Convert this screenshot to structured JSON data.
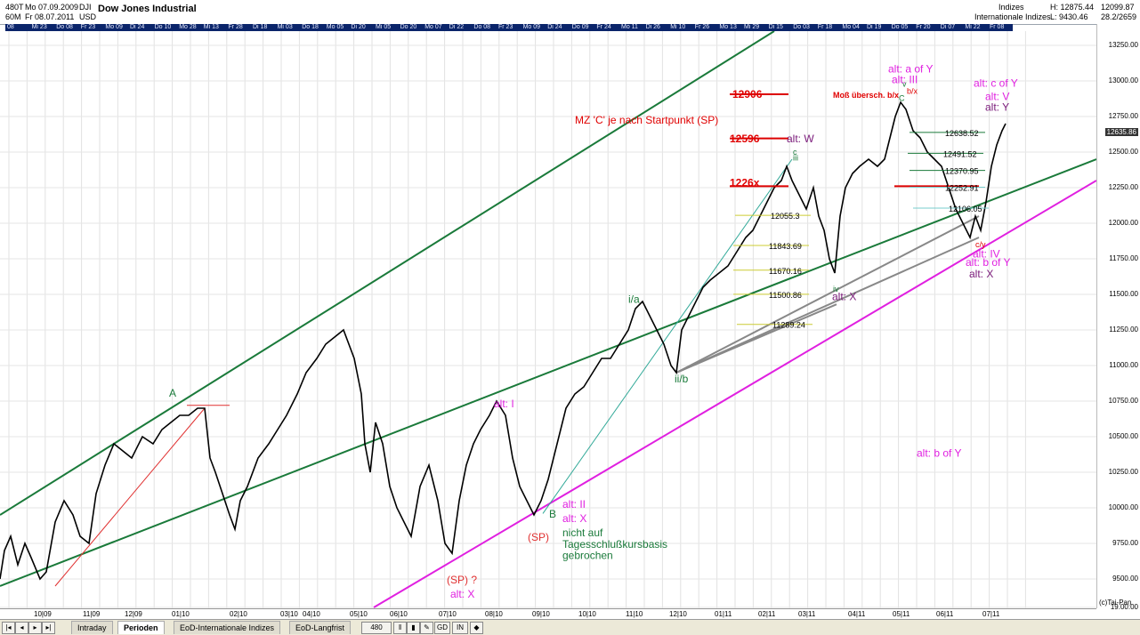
{
  "header": {
    "bars": "480T",
    "start_date": "Mo 07.09.2009",
    "end_date": "Fr 08.07.2011",
    "interval": "60M",
    "symbol": "DJI",
    "currency": "USD",
    "title": "Dow Jones Industrial",
    "group": "Indizes",
    "group2": "Internationale Indizes",
    "high": "H: 12875.44",
    "low": "L: 9430.46",
    "right_top": "12099.87",
    "right_top2": "28.2/2659"
  },
  "chart_data": {
    "type": "line",
    "title": "Dow Jones Industrial",
    "ylim": [
      9300,
      13350
    ],
    "y_ticks": [
      "13250.00",
      "13000.00",
      "12750.00",
      "12500.00",
      "12250.00",
      "12000.00",
      "11750.00",
      "11500.00",
      "11250.00",
      "11000.00",
      "10750.00",
      "10500.00",
      "10250.00",
      "10000.00",
      "9750.00",
      "9500.00",
      "19.00:00"
    ],
    "y_tick_values": [
      13250,
      13000,
      12750,
      12500,
      12250,
      12000,
      11750,
      11500,
      11250,
      11000,
      10750,
      10500,
      10250,
      10000,
      9750,
      9500,
      9300
    ],
    "last_value": "12635.86",
    "x_labels": [
      "10|09",
      "11|09",
      "12|09",
      "01|10",
      "02|10",
      "03|10",
      "04|10",
      "05|10",
      "06|10",
      "07|10",
      "08|10",
      "09|10",
      "10|10",
      "11|10",
      "12|10",
      "01|11",
      "02|11",
      "03|11",
      "04|11",
      "05|11",
      "06|11",
      "07|11"
    ],
    "date_bar": [
      "08",
      "Mi 23",
      "Do 08",
      "Fr 23",
      "Mo 09",
      "Di 24",
      "Do 10",
      "Mo 28",
      "Mi 13",
      "Fr 28",
      "Di 18",
      "Mi 03",
      "Do 18",
      "Mo 05",
      "Di 20",
      "Mi 05",
      "Do 20",
      "Mo 07",
      "Di 22",
      "Do 08",
      "Fr 23",
      "Mo 09",
      "Di 24",
      "Do 09",
      "Fr 24",
      "Mo 11",
      "Di 26",
      "Mi 10",
      "Fr 26",
      "Mo 13",
      "Mi 29",
      "Di 15",
      "Do 03",
      "Fr 18",
      "Mo 04",
      "Di 19",
      "Do 05",
      "Fr 20",
      "Di 07",
      "Mi 22",
      "Fr 08"
    ],
    "series": [
      {
        "values": [
          [
            0,
            9500
          ],
          [
            5,
            9700
          ],
          [
            12,
            9800
          ],
          [
            20,
            9600
          ],
          [
            28,
            9750
          ],
          [
            35,
            9650
          ],
          [
            45,
            9500
          ],
          [
            52,
            9550
          ],
          [
            62,
            9900
          ],
          [
            72,
            10050
          ],
          [
            82,
            9950
          ],
          [
            90,
            9800
          ],
          [
            100,
            9750
          ],
          [
            108,
            10100
          ],
          [
            118,
            10300
          ],
          [
            128,
            10450
          ],
          [
            138,
            10400
          ],
          [
            148,
            10350
          ],
          [
            160,
            10500
          ],
          [
            172,
            10450
          ],
          [
            182,
            10550
          ],
          [
            192,
            10600
          ],
          [
            202,
            10650
          ],
          [
            212,
            10650
          ],
          [
            222,
            10700
          ],
          [
            230,
            10700
          ],
          [
            236,
            10350
          ],
          [
            242,
            10250
          ],
          [
            250,
            10100
          ],
          [
            258,
            9950
          ],
          [
            264,
            9850
          ],
          [
            270,
            10050
          ],
          [
            278,
            10150
          ],
          [
            290,
            10350
          ],
          [
            302,
            10450
          ],
          [
            312,
            10550
          ],
          [
            322,
            10650
          ],
          [
            334,
            10800
          ],
          [
            344,
            10950
          ],
          [
            356,
            11050
          ],
          [
            366,
            11150
          ],
          [
            376,
            11200
          ],
          [
            386,
            11250
          ],
          [
            398,
            11050
          ],
          [
            406,
            10800
          ],
          [
            410,
            10450
          ],
          [
            416,
            10250
          ],
          [
            422,
            10600
          ],
          [
            430,
            10450
          ],
          [
            438,
            10150
          ],
          [
            446,
            10000
          ],
          [
            454,
            9900
          ],
          [
            462,
            9800
          ],
          [
            472,
            10150
          ],
          [
            482,
            10300
          ],
          [
            492,
            10050
          ],
          [
            500,
            9750
          ],
          [
            508,
            9680
          ],
          [
            516,
            10050
          ],
          [
            524,
            10300
          ],
          [
            532,
            10450
          ],
          [
            540,
            10550
          ],
          [
            550,
            10650
          ],
          [
            558,
            10750
          ],
          [
            568,
            10650
          ],
          [
            576,
            10350
          ],
          [
            584,
            10150
          ],
          [
            592,
            10050
          ],
          [
            600,
            9950
          ],
          [
            608,
            10050
          ],
          [
            616,
            10200
          ],
          [
            626,
            10450
          ],
          [
            636,
            10700
          ],
          [
            646,
            10800
          ],
          [
            656,
            10850
          ],
          [
            666,
            10950
          ],
          [
            676,
            11050
          ],
          [
            686,
            11050
          ],
          [
            696,
            11150
          ],
          [
            706,
            11250
          ],
          [
            714,
            11400
          ],
          [
            722,
            11450
          ],
          [
            730,
            11350
          ],
          [
            738,
            11250
          ],
          [
            746,
            11150
          ],
          [
            754,
            11000
          ],
          [
            760,
            10950
          ],
          [
            766,
            11250
          ],
          [
            774,
            11350
          ],
          [
            782,
            11450
          ],
          [
            790,
            11550
          ],
          [
            798,
            11600
          ],
          [
            808,
            11650
          ],
          [
            818,
            11700
          ],
          [
            828,
            11800
          ],
          [
            838,
            11900
          ],
          [
            846,
            11950
          ],
          [
            854,
            12050
          ],
          [
            862,
            12150
          ],
          [
            870,
            12250
          ],
          [
            878,
            12300
          ],
          [
            884,
            12400
          ],
          [
            890,
            12300
          ],
          [
            898,
            12200
          ],
          [
            906,
            12100
          ],
          [
            914,
            12250
          ],
          [
            920,
            12050
          ],
          [
            926,
            11950
          ],
          [
            932,
            11750
          ],
          [
            938,
            11650
          ],
          [
            944,
            12050
          ],
          [
            950,
            12250
          ],
          [
            958,
            12350
          ],
          [
            966,
            12400
          ],
          [
            976,
            12450
          ],
          [
            986,
            12400
          ],
          [
            994,
            12450
          ],
          [
            1000,
            12600
          ],
          [
            1006,
            12750
          ],
          [
            1012,
            12850
          ],
          [
            1018,
            12800
          ],
          [
            1026,
            12650
          ],
          [
            1034,
            12600
          ],
          [
            1042,
            12500
          ],
          [
            1050,
            12450
          ],
          [
            1058,
            12400
          ],
          [
            1066,
            12250
          ],
          [
            1074,
            12100
          ],
          [
            1082,
            12000
          ],
          [
            1090,
            11900
          ],
          [
            1096,
            12050
          ],
          [
            1102,
            11950
          ],
          [
            1108,
            12150
          ],
          [
            1114,
            12400
          ],
          [
            1120,
            12550
          ],
          [
            1126,
            12650
          ],
          [
            1130,
            12700
          ]
        ]
      }
    ],
    "trend_lines": [],
    "grid": true
  },
  "annotations": {
    "A": "A",
    "alt_I": "alt: I",
    "alt_II": "alt: II",
    "alt_X_low": "alt: X",
    "B": "B",
    "SP_q": "(SP)",
    "SP_q2": "(SP) ?",
    "alt_X_bottom": "alt: X",
    "nicht1": "nicht auf",
    "nicht2": "Tagesschlußkursbasis",
    "nicht3": "gebrochen",
    "i_a": "i/a",
    "ii_b": "ii/b",
    "iii": "iii",
    "c": "c",
    "iv": "iv",
    "alt_X_mid": "alt: X",
    "alt_W": "alt: W",
    "mz": "MZ 'C' je nach Startpunkt (SP)",
    "p12906": "12906",
    "p12596": "12596",
    "p1226": "1226x",
    "mob": "Moß übersch. b/x",
    "bx": "b/x",
    "v": "v",
    "C": "C",
    "alt_a_of_Y": "alt: a of Y",
    "alt_III": "alt: III",
    "alt_c_of_Y": "alt: c of Y",
    "alt_V": "alt: V",
    "alt_Y": "alt: Y",
    "alt_IV": "alt: IV",
    "alt_b_of_Y": "alt: b of Y",
    "alt_X_right": "alt: X",
    "alt_b_of_Y2": "alt: b of Y",
    "cy": "c/y",
    "fib": [
      "12638.52",
      "12491.52",
      "12370.95",
      "12252.91",
      "12106.05",
      "12055.3",
      "11843.69",
      "11670.16",
      "11500.86",
      "11289.24"
    ],
    "copyright": "(c)Tai-Pan"
  },
  "tabs": {
    "intraday": "Intraday",
    "perioden": "Perioden",
    "eod_int": "EoD-Internationale Indizes",
    "eod_lang": "EoD-Langfrist",
    "count": "480",
    "gd": "GD",
    "in": "IN"
  }
}
